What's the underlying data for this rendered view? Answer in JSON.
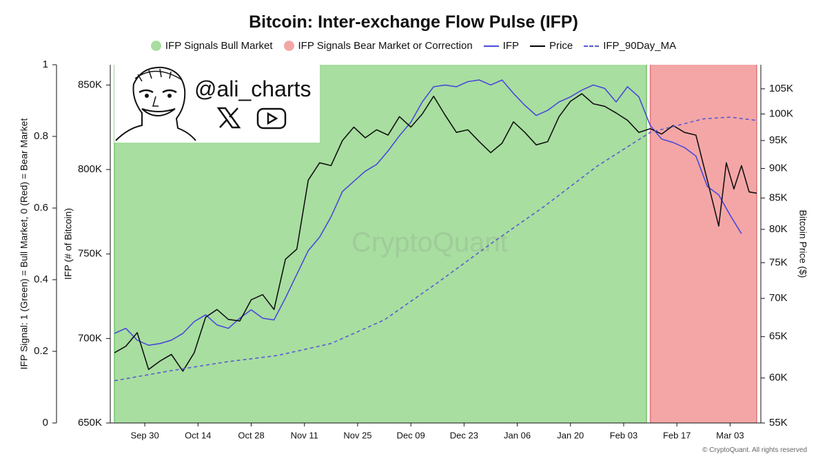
{
  "chart_data": {
    "type": "line",
    "title": "Bitcoin: Inter-exchange Flow Pulse (IFP)",
    "legend": {
      "placement": "top-center",
      "items": [
        {
          "label": "IFP Signals Bull Market",
          "style": "dot",
          "color": "#a8dea0"
        },
        {
          "label": "IFP Signals Bear Market or Correction",
          "style": "dot",
          "color": "#f4a6a6"
        },
        {
          "label": "IFP",
          "style": "line",
          "color": "#4a4ad8"
        },
        {
          "label": "Price",
          "style": "line",
          "color": "#111111"
        },
        {
          "label": "IFP_90Day_MA",
          "style": "dashed",
          "color": "#5a5ad0"
        }
      ]
    },
    "axes": {
      "signal": {
        "label": "IFP Signal: 1 (Green) = Bull Market, 0 (Red) = Bear Market",
        "range": [
          0,
          1
        ],
        "ticks": [
          "0",
          "0.2",
          "0.4",
          "0.6",
          "0.8",
          "1"
        ]
      },
      "ifp": {
        "label": "IFP (# of Bitcoin)",
        "range": [
          650000,
          862000
        ],
        "ticks": [
          {
            "v": 650000,
            "t": "650K"
          },
          {
            "v": 700000,
            "t": "700K"
          },
          {
            "v": 750000,
            "t": "750K"
          },
          {
            "v": 800000,
            "t": "800K"
          },
          {
            "v": 850000,
            "t": "850K"
          }
        ]
      },
      "price": {
        "label": "Bitcoin Price ($)",
        "scale": "log",
        "range": [
          55000,
          110000
        ],
        "ticks": [
          {
            "v": 55000,
            "t": "55K"
          },
          {
            "v": 60000,
            "t": "60K"
          },
          {
            "v": 65000,
            "t": "65K"
          },
          {
            "v": 70000,
            "t": "70K"
          },
          {
            "v": 75000,
            "t": "75K"
          },
          {
            "v": 80000,
            "t": "80K"
          },
          {
            "v": 85000,
            "t": "85K"
          },
          {
            "v": 90000,
            "t": "90K"
          },
          {
            "v": 95000,
            "t": "95K"
          },
          {
            "v": 100000,
            "t": "100K"
          },
          {
            "v": 105000,
            "t": "105K"
          }
        ]
      },
      "x": {
        "start": "2024-09-22",
        "end": "2025-03-10",
        "ticks": [
          {
            "d": "2024-09-30",
            "t": "Sep 30"
          },
          {
            "d": "2024-10-14",
            "t": "Oct 14"
          },
          {
            "d": "2024-10-28",
            "t": "Oct 28"
          },
          {
            "d": "2024-11-11",
            "t": "Nov 11"
          },
          {
            "d": "2024-11-25",
            "t": "Nov 25"
          },
          {
            "d": "2024-12-09",
            "t": "Dec 09"
          },
          {
            "d": "2024-12-23",
            "t": "Dec 23"
          },
          {
            "d": "2025-01-06",
            "t": "Jan 06"
          },
          {
            "d": "2025-01-20",
            "t": "Jan 20"
          },
          {
            "d": "2025-02-03",
            "t": "Feb 03"
          },
          {
            "d": "2025-02-17",
            "t": "Feb 17"
          },
          {
            "d": "2025-03-03",
            "t": "Mar 03"
          }
        ]
      }
    },
    "signal_regions": [
      {
        "start": "2024-09-22",
        "end": "2025-02-09",
        "signal": 1,
        "color": "#a8dea0"
      },
      {
        "start": "2025-02-10",
        "end": "2025-03-10",
        "signal": 0,
        "color": "#f4a6a6"
      }
    ],
    "series": [
      {
        "name": "IFP",
        "axis": "ifp",
        "color": "#4a4ad8",
        "points": [
          [
            "2024-09-22",
            703000
          ],
          [
            "2024-09-25",
            706000
          ],
          [
            "2024-09-28",
            699000
          ],
          [
            "2024-10-01",
            696000
          ],
          [
            "2024-10-04",
            697000
          ],
          [
            "2024-10-07",
            699000
          ],
          [
            "2024-10-10",
            703000
          ],
          [
            "2024-10-13",
            710000
          ],
          [
            "2024-10-16",
            714000
          ],
          [
            "2024-10-19",
            708000
          ],
          [
            "2024-10-22",
            706000
          ],
          [
            "2024-10-25",
            712000
          ],
          [
            "2024-10-28",
            717000
          ],
          [
            "2024-10-31",
            712000
          ],
          [
            "2024-11-03",
            711000
          ],
          [
            "2024-11-06",
            724000
          ],
          [
            "2024-11-09",
            738000
          ],
          [
            "2024-11-12",
            752000
          ],
          [
            "2024-11-15",
            760000
          ],
          [
            "2024-11-18",
            772000
          ],
          [
            "2024-11-21",
            787000
          ],
          [
            "2024-11-24",
            793000
          ],
          [
            "2024-11-27",
            799000
          ],
          [
            "2024-11-30",
            803000
          ],
          [
            "2024-12-03",
            811000
          ],
          [
            "2024-12-06",
            820000
          ],
          [
            "2024-12-09",
            828000
          ],
          [
            "2024-12-12",
            840000
          ],
          [
            "2024-12-15",
            849000
          ],
          [
            "2024-12-18",
            850000
          ],
          [
            "2024-12-21",
            849000
          ],
          [
            "2024-12-24",
            852000
          ],
          [
            "2024-12-27",
            853000
          ],
          [
            "2024-12-30",
            850000
          ],
          [
            "2025-01-02",
            853000
          ],
          [
            "2025-01-05",
            845000
          ],
          [
            "2025-01-08",
            838000
          ],
          [
            "2025-01-11",
            832000
          ],
          [
            "2025-01-14",
            835000
          ],
          [
            "2025-01-17",
            840000
          ],
          [
            "2025-01-20",
            843000
          ],
          [
            "2025-01-23",
            847000
          ],
          [
            "2025-01-26",
            850000
          ],
          [
            "2025-01-29",
            848000
          ],
          [
            "2025-02-01",
            840000
          ],
          [
            "2025-02-04",
            849000
          ],
          [
            "2025-02-07",
            843000
          ],
          [
            "2025-02-10",
            826000
          ],
          [
            "2025-02-13",
            818000
          ],
          [
            "2025-02-16",
            816000
          ],
          [
            "2025-02-19",
            813000
          ],
          [
            "2025-02-22",
            808000
          ],
          [
            "2025-02-25",
            790000
          ],
          [
            "2025-02-28",
            785000
          ],
          [
            "2025-03-03",
            773000
          ],
          [
            "2025-03-06",
            762000
          ]
        ]
      },
      {
        "name": "Price",
        "axis": "price",
        "color": "#111111",
        "points": [
          [
            "2024-09-22",
            63000
          ],
          [
            "2024-09-25",
            63800
          ],
          [
            "2024-09-28",
            65500
          ],
          [
            "2024-10-01",
            61000
          ],
          [
            "2024-10-04",
            62000
          ],
          [
            "2024-10-07",
            62800
          ],
          [
            "2024-10-10",
            60800
          ],
          [
            "2024-10-13",
            63000
          ],
          [
            "2024-10-16",
            67500
          ],
          [
            "2024-10-19",
            68500
          ],
          [
            "2024-10-22",
            67200
          ],
          [
            "2024-10-25",
            67000
          ],
          [
            "2024-10-28",
            69800
          ],
          [
            "2024-10-31",
            70500
          ],
          [
            "2024-11-03",
            68500
          ],
          [
            "2024-11-06",
            75500
          ],
          [
            "2024-11-09",
            77000
          ],
          [
            "2024-11-12",
            88000
          ],
          [
            "2024-11-15",
            91000
          ],
          [
            "2024-11-18",
            90500
          ],
          [
            "2024-11-21",
            95000
          ],
          [
            "2024-11-24",
            97500
          ],
          [
            "2024-11-27",
            95500
          ],
          [
            "2024-11-30",
            97000
          ],
          [
            "2024-12-03",
            96000
          ],
          [
            "2024-12-06",
            99500
          ],
          [
            "2024-12-09",
            97500
          ],
          [
            "2024-12-12",
            100000
          ],
          [
            "2024-12-15",
            103500
          ],
          [
            "2024-12-18",
            99800
          ],
          [
            "2024-12-21",
            96500
          ],
          [
            "2024-12-24",
            97000
          ],
          [
            "2024-12-27",
            94800
          ],
          [
            "2024-12-30",
            92800
          ],
          [
            "2025-01-02",
            94500
          ],
          [
            "2025-01-05",
            98500
          ],
          [
            "2025-01-08",
            96500
          ],
          [
            "2025-01-11",
            94200
          ],
          [
            "2025-01-14",
            94800
          ],
          [
            "2025-01-17",
            99500
          ],
          [
            "2025-01-20",
            102500
          ],
          [
            "2025-01-23",
            104000
          ],
          [
            "2025-01-26",
            102000
          ],
          [
            "2025-01-29",
            101500
          ],
          [
            "2025-02-01",
            100200
          ],
          [
            "2025-02-04",
            98800
          ],
          [
            "2025-02-07",
            96500
          ],
          [
            "2025-02-10",
            97200
          ],
          [
            "2025-02-13",
            96200
          ],
          [
            "2025-02-16",
            97800
          ],
          [
            "2025-02-19",
            96500
          ],
          [
            "2025-02-22",
            96000
          ],
          [
            "2025-02-25",
            88000
          ],
          [
            "2025-02-28",
            80500
          ],
          [
            "2025-03-02",
            91000
          ],
          [
            "2025-03-04",
            86500
          ],
          [
            "2025-03-06",
            90500
          ],
          [
            "2025-03-08",
            86000
          ],
          [
            "2025-03-10",
            85800
          ]
        ]
      },
      {
        "name": "IFP_90Day_MA",
        "axis": "ifp",
        "color": "#5a5ad0",
        "dashed": true,
        "points": [
          [
            "2024-09-22",
            675000
          ],
          [
            "2024-10-07",
            681000
          ],
          [
            "2024-10-21",
            686000
          ],
          [
            "2024-11-04",
            690000
          ],
          [
            "2024-11-18",
            697000
          ],
          [
            "2024-12-02",
            711000
          ],
          [
            "2024-12-16",
            733000
          ],
          [
            "2024-12-30",
            756000
          ],
          [
            "2025-01-13",
            778000
          ],
          [
            "2025-01-27",
            802000
          ],
          [
            "2025-02-10",
            822000
          ],
          [
            "2025-02-24",
            830000
          ],
          [
            "2025-03-03",
            831000
          ],
          [
            "2025-03-10",
            829000
          ]
        ]
      }
    ]
  },
  "branding": {
    "handle": "@ali_charts",
    "watermark": "CryptoQuant",
    "copyright": "© CryptoQuant. All rights reserved",
    "icons": [
      "cartoon-face-icon",
      "x-logo-icon",
      "youtube-icon"
    ]
  }
}
